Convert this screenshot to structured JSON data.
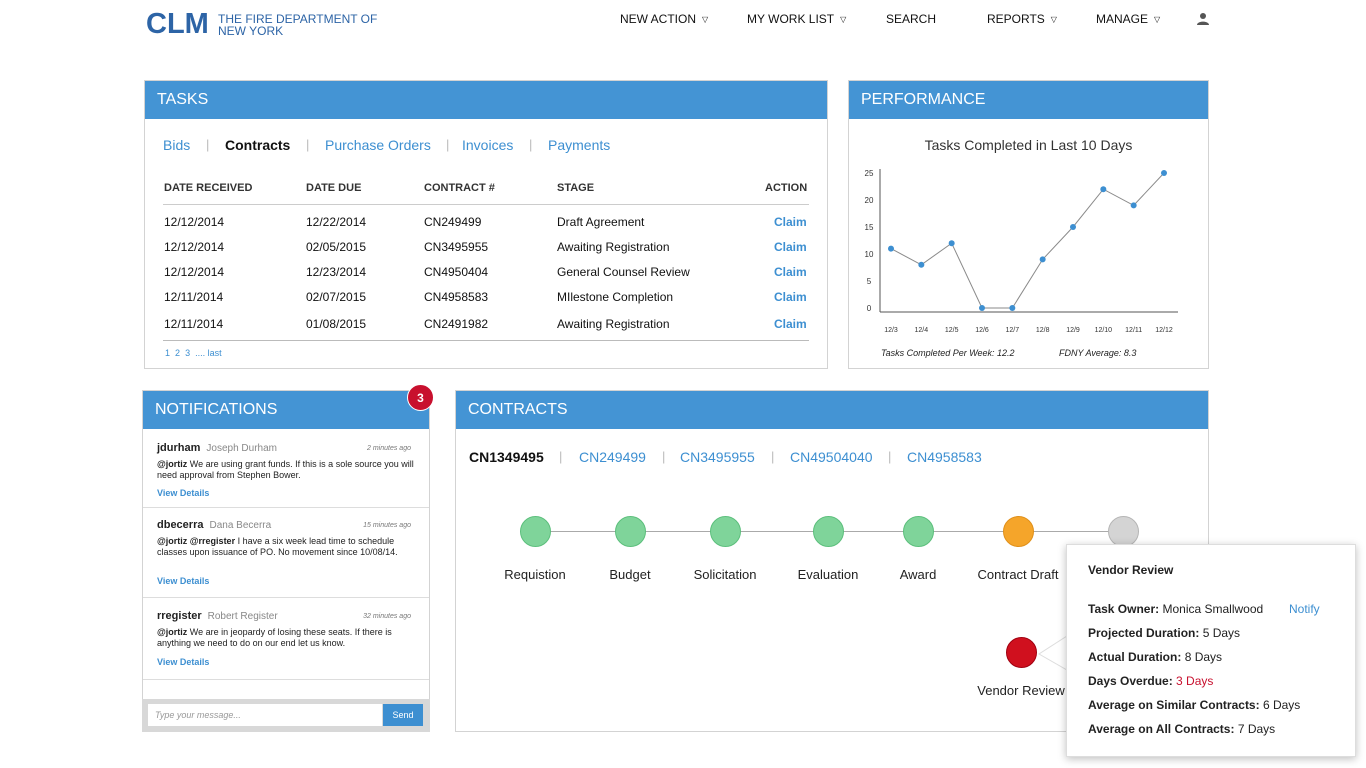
{
  "header": {
    "logo": "CLM",
    "org_line1": "THE FIRE DEPARTMENT OF",
    "org_line2": "NEW YORK",
    "nav": {
      "new_action": "NEW ACTION",
      "my_work_list": "MY WORK LIST",
      "search": "SEARCH",
      "reports": "REPORTS",
      "manage": "MANAGE"
    },
    "caret": "▽"
  },
  "tasks": {
    "title": "TASKS",
    "tabs": [
      "Bids",
      "Contracts",
      "Purchase Orders",
      "Invoices",
      "Payments"
    ],
    "active_tab": "Contracts",
    "columns": [
      "DATE RECEIVED",
      "DATE DUE",
      "CONTRACT #",
      "STAGE",
      "ACTION"
    ],
    "rows": [
      {
        "received": "12/12/2014",
        "due": "12/22/2014",
        "contract": "CN249499",
        "stage": "Draft Agreement",
        "action": "Claim"
      },
      {
        "received": "12/12/2014",
        "due": "02/05/2015",
        "contract": "CN3495955",
        "stage": "Awaiting Registration",
        "action": "Claim"
      },
      {
        "received": "12/12/2014",
        "due": "12/23/2014",
        "contract": "CN4950404",
        "stage": "General Counsel Review",
        "action": "Claim"
      },
      {
        "received": "12/11/2014",
        "due": "02/07/2015",
        "contract": "CN4958583",
        "stage": "MIlestone Completion",
        "action": "Claim"
      },
      {
        "received": "12/11/2014",
        "due": "01/08/2015",
        "contract": "CN2491982",
        "stage": "Awaiting Registration",
        "action": "Claim"
      }
    ],
    "pager": {
      "p1": "1",
      "p2": "2",
      "p3": "3",
      "ellipsis": "....",
      "last": "last"
    }
  },
  "performance": {
    "title": "PERFORMANCE",
    "footer_left": "Tasks Completed Per Week: 12.2",
    "footer_right": "FDNY  Average: 8.3"
  },
  "chart_data": {
    "type": "line",
    "title": "Tasks Completed in Last 10 Days",
    "categories": [
      "12/3",
      "12/4",
      "12/5",
      "12/6",
      "12/7",
      "12/8",
      "12/9",
      "12/10",
      "12/11",
      "12/12"
    ],
    "values": [
      11,
      8,
      12,
      0,
      0,
      9,
      15,
      22,
      19,
      25
    ],
    "ylim": [
      0,
      25
    ],
    "yticks": [
      0,
      5,
      10,
      15,
      20,
      25
    ],
    "grid": false,
    "color": "#3d8fd1"
  },
  "notifications": {
    "title": "NOTIFICATIONS",
    "badge": "3",
    "items": [
      {
        "user": "jdurham",
        "name": "Joseph Durham",
        "time": "2 minutes ago",
        "mentions": "@jortiz",
        "text": " We are using grant funds. If this is a sole source you will need approval from Stephen Bower.",
        "link": "View Details"
      },
      {
        "user": "dbecerra",
        "name": "Dana Becerra",
        "time": "15 minutes ago",
        "mentions": "@jortiz  @rregister",
        "text": "  I have a six week lead time to schedule classes upon issuance of PO. No movement since 10/08/14.",
        "link": "View Details"
      },
      {
        "user": "rregister",
        "name": "Robert Register",
        "time": "32 minutes ago",
        "mentions": "@jortiz",
        "text": " We are in jeopardy of losing these seats. If there is anything we need to do on our end let us know.",
        "link": "View Details"
      }
    ],
    "input_placeholder": "Type your message...",
    "send_label": "Send"
  },
  "contracts": {
    "title": "CONTRACTS",
    "tabs": [
      "CN1349495",
      "CN249499",
      "CN3495955",
      "CN49504040",
      "CN4958583"
    ],
    "active_tab": "CN1349495",
    "stages": [
      {
        "label": "Requistion",
        "status": "complete"
      },
      {
        "label": "Budget",
        "status": "complete"
      },
      {
        "label": "Solicitation",
        "status": "complete"
      },
      {
        "label": "Evaluation",
        "status": "complete"
      },
      {
        "label": "Award",
        "status": "complete"
      },
      {
        "label": "Contract Draft",
        "status": "in-progress"
      },
      {
        "label": "",
        "status": "pending"
      }
    ],
    "overdue_stage": {
      "label": "Vendor Review",
      "status": "overdue"
    },
    "colors": {
      "complete": "#7fd49a",
      "in-progress": "#f5a52a",
      "pending": "#d4d4d4",
      "overdue": "#d0101e"
    }
  },
  "popover": {
    "title": "Vendor Review",
    "task_owner_label": "Task Owner:",
    "task_owner": "Monica Smallwood",
    "notify": "Notify",
    "projected_label": "Projected Duration:",
    "projected": "5 Days",
    "actual_label": "Actual Duration:",
    "actual": "8 Days",
    "overdue_label": "Days Overdue:",
    "overdue": "3 Days",
    "similar_label": "Average on Similar Contracts:",
    "similar": "6 Days",
    "all_label": "Average on All Contracts:",
    "all": "7 Days"
  }
}
